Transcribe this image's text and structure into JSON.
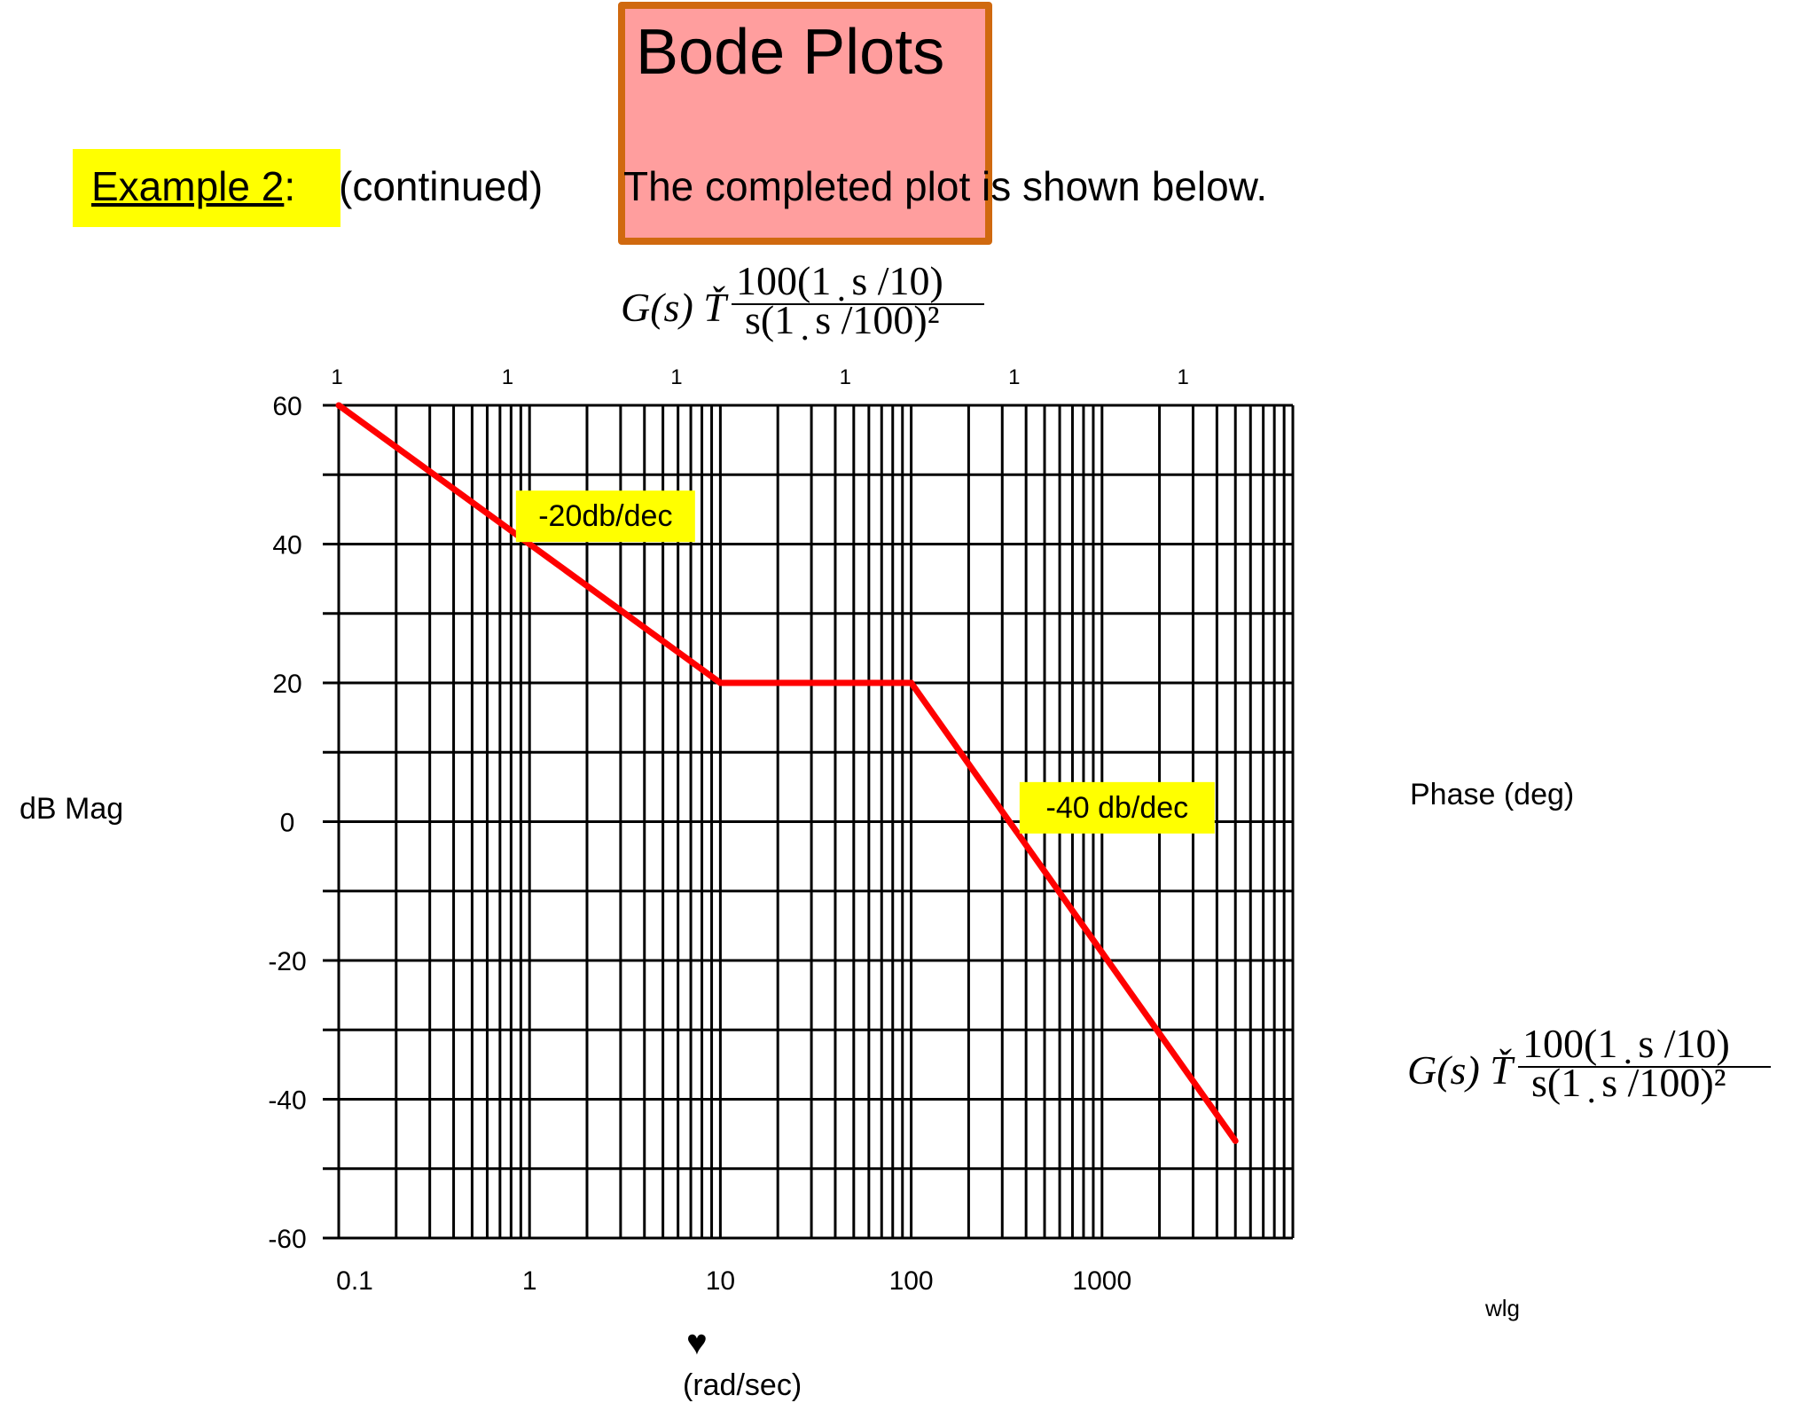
{
  "slide": {
    "title": "Bode Plots",
    "example_label": "Example 2",
    "example_colon": ":",
    "continued": "(continued)",
    "caption": "The completed plot is shown below.",
    "formula": {
      "lhs": "G(s) Ť",
      "numerator": "100(1 ̣ s /10)",
      "denominator": "s(1 ̣ s /100)²"
    },
    "left_axis_label": "dB Mag",
    "right_axis_label": "Phase (deg)",
    "corner_label": "wlg",
    "x_unit_label": "(rad/sec)",
    "heart_glyph": "♥"
  },
  "chart_data": {
    "type": "line",
    "title": "",
    "xlabel": "(rad/sec)",
    "ylabel": "dB Mag",
    "x_scale": "log",
    "xlim": [
      0.1,
      10000
    ],
    "ylim": [
      -60,
      60
    ],
    "grid": true,
    "y_ticks": [
      60,
      40,
      20,
      0,
      -20,
      -40,
      -60
    ],
    "x_tick_labels": [
      {
        "x": 0.1,
        "label": "0.1"
      },
      {
        "x": 1,
        "label": "1"
      },
      {
        "x": 10,
        "label": "10"
      },
      {
        "x": 100,
        "label": "100"
      },
      {
        "x": 1000,
        "label": "1000"
      }
    ],
    "top_tick_labels": [
      "1",
      "1",
      "1",
      "1",
      "1",
      "1"
    ],
    "series": [
      {
        "color": "#ff0000",
        "points": [
          {
            "x": 0.1,
            "y": 60
          },
          {
            "x": 10,
            "y": 20
          },
          {
            "x": 100,
            "y": 20
          },
          {
            "x": 5000,
            "y": -46
          }
        ]
      }
    ],
    "annotations": [
      {
        "text": "-20db/dec",
        "x": 2.5,
        "y": 44,
        "background": "#ffff00"
      },
      {
        "text": "-40 db/dec",
        "x": 1200,
        "y": 2,
        "background": "#ffff00"
      }
    ]
  }
}
